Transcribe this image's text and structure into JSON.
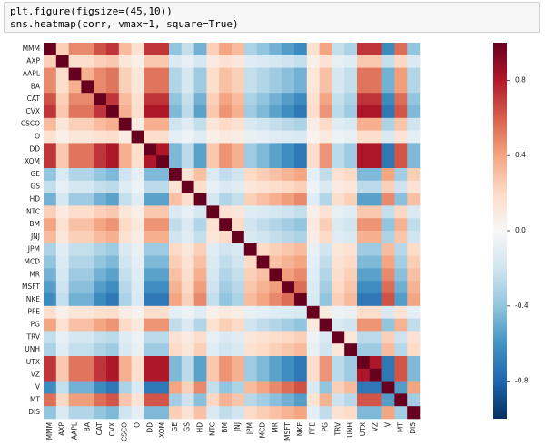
{
  "code": [
    "plt.figure(figsize=(45,10))",
    "sns.heatmap(corr, vmax=1, square=True)"
  ],
  "chart_data": {
    "type": "heatmap",
    "categories": [
      "MMM",
      "AXP",
      "AAPL",
      "BA",
      "CAT",
      "CVX",
      "CSCO",
      "O",
      "DD",
      "XOM",
      "GE",
      "GS",
      "HD",
      "NTC",
      "BM",
      "JNJ",
      "JPM",
      "MCD",
      "MR",
      "MSFT",
      "NKE",
      "PFE",
      "PG",
      "TRV",
      "UNH",
      "UTX",
      "VZ",
      "V",
      "MT",
      "DIS"
    ],
    "values": [
      [
        1,
        0.24,
        0.48,
        0.48,
        0.64,
        0.72,
        0.32,
        0.16,
        0.72,
        0.72,
        -0.4,
        -0.24,
        -0.48,
        0.24,
        0.4,
        0.32,
        -0.32,
        -0.4,
        -0.48,
        -0.56,
        -0.64,
        0.16,
        0.4,
        -0.24,
        -0.32,
        0.72,
        0.72,
        -0.64,
        0.56,
        -0.4
      ],
      [
        0.24,
        1,
        0.18,
        0.18,
        0.24,
        0.27,
        0.12,
        0.06,
        0.27,
        0.27,
        -0.15,
        -0.09,
        -0.18,
        0.09,
        0.15,
        0.12,
        -0.12,
        -0.15,
        -0.18,
        -0.21,
        -0.24,
        0.06,
        0.15,
        -0.09,
        -0.12,
        0.27,
        0.27,
        -0.24,
        0.21,
        -0.15
      ],
      [
        0.48,
        0.18,
        1,
        0.36,
        0.48,
        0.54,
        0.24,
        0.12,
        0.54,
        0.54,
        -0.3,
        -0.18,
        -0.36,
        0.18,
        0.3,
        0.24,
        -0.24,
        -0.3,
        -0.36,
        -0.42,
        -0.48,
        0.12,
        0.3,
        -0.18,
        -0.24,
        0.54,
        0.54,
        -0.48,
        0.42,
        -0.3
      ],
      [
        0.48,
        0.18,
        0.36,
        1,
        0.48,
        0.54,
        0.24,
        0.12,
        0.54,
        0.54,
        -0.3,
        -0.18,
        -0.36,
        0.18,
        0.3,
        0.24,
        -0.24,
        -0.3,
        -0.36,
        -0.42,
        -0.48,
        0.12,
        0.3,
        -0.18,
        -0.24,
        0.54,
        0.54,
        -0.48,
        0.42,
        -0.3
      ],
      [
        0.64,
        0.24,
        0.48,
        0.48,
        1,
        0.72,
        0.32,
        0.16,
        0.72,
        0.72,
        -0.4,
        -0.24,
        -0.48,
        0.24,
        0.4,
        0.32,
        -0.32,
        -0.4,
        -0.48,
        -0.56,
        -0.64,
        0.16,
        0.4,
        -0.24,
        -0.32,
        0.72,
        0.72,
        -0.64,
        0.56,
        -0.4
      ],
      [
        0.72,
        0.27,
        0.54,
        0.54,
        0.72,
        1,
        0.36,
        0.18,
        0.81,
        0.81,
        -0.45,
        -0.27,
        -0.54,
        0.27,
        0.45,
        0.36,
        -0.36,
        -0.45,
        -0.54,
        -0.63,
        -0.72,
        0.18,
        0.45,
        -0.27,
        -0.36,
        0.81,
        0.81,
        -0.72,
        0.63,
        -0.45
      ],
      [
        0.32,
        0.12,
        0.24,
        0.24,
        0.32,
        0.36,
        1,
        0.08,
        0.36,
        0.36,
        -0.2,
        -0.12,
        -0.24,
        0.12,
        0.2,
        0.16,
        -0.16,
        -0.2,
        -0.24,
        -0.28,
        -0.32,
        0.08,
        0.2,
        -0.12,
        -0.16,
        0.36,
        0.36,
        -0.32,
        0.28,
        -0.2
      ],
      [
        0.16,
        0.06,
        0.12,
        0.12,
        0.16,
        0.18,
        0.08,
        1,
        0.18,
        0.18,
        -0.1,
        -0.06,
        -0.12,
        0.06,
        0.1,
        0.08,
        -0.08,
        -0.1,
        -0.12,
        -0.14,
        -0.16,
        0.04,
        0.1,
        -0.06,
        -0.08,
        0.18,
        0.18,
        -0.16,
        0.14,
        -0.1
      ],
      [
        0.72,
        0.27,
        0.54,
        0.54,
        0.72,
        0.81,
        0.36,
        0.18,
        1,
        0.81,
        -0.45,
        -0.27,
        -0.54,
        0.27,
        0.45,
        0.36,
        -0.36,
        -0.45,
        -0.54,
        -0.63,
        -0.72,
        0.18,
        0.45,
        -0.27,
        -0.36,
        0.81,
        0.81,
        -0.72,
        0.63,
        -0.45
      ],
      [
        0.72,
        0.27,
        0.54,
        0.54,
        0.72,
        0.81,
        0.36,
        0.18,
        0.81,
        1,
        -0.45,
        -0.27,
        -0.54,
        0.27,
        0.45,
        0.36,
        -0.36,
        -0.45,
        -0.54,
        -0.63,
        -0.72,
        0.18,
        0.45,
        -0.27,
        -0.36,
        0.81,
        0.81,
        -0.72,
        0.63,
        -0.45
      ],
      [
        -0.4,
        -0.15,
        -0.3,
        -0.3,
        -0.4,
        -0.45,
        -0.2,
        -0.1,
        -0.45,
        -0.45,
        1,
        0.15,
        0.3,
        -0.15,
        -0.25,
        -0.2,
        0.2,
        0.25,
        0.3,
        0.35,
        0.4,
        -0.1,
        -0.25,
        0.15,
        0.2,
        -0.45,
        -0.45,
        0.4,
        -0.35,
        0.25
      ],
      [
        -0.24,
        -0.09,
        -0.18,
        -0.18,
        -0.24,
        -0.27,
        -0.12,
        -0.06,
        -0.27,
        -0.27,
        0.15,
        1,
        0.18,
        -0.09,
        -0.15,
        -0.12,
        0.12,
        0.15,
        0.18,
        0.21,
        0.24,
        -0.06,
        -0.15,
        0.09,
        0.12,
        -0.27,
        -0.27,
        0.24,
        -0.21,
        0.15
      ],
      [
        -0.48,
        -0.18,
        -0.36,
        -0.36,
        -0.48,
        -0.54,
        -0.24,
        -0.12,
        -0.54,
        -0.54,
        0.3,
        0.18,
        1,
        -0.18,
        -0.3,
        -0.24,
        0.24,
        0.3,
        0.36,
        0.42,
        0.48,
        -0.12,
        -0.3,
        0.18,
        0.24,
        -0.54,
        -0.54,
        0.48,
        -0.42,
        0.3
      ],
      [
        0.24,
        0.09,
        0.18,
        0.18,
        0.24,
        0.27,
        0.12,
        0.06,
        0.27,
        0.27,
        -0.15,
        -0.09,
        -0.18,
        1,
        0.15,
        0.12,
        -0.12,
        -0.15,
        -0.18,
        -0.21,
        -0.24,
        0.06,
        0.15,
        -0.09,
        -0.12,
        0.27,
        0.27,
        -0.24,
        0.21,
        -0.15
      ],
      [
        0.4,
        0.15,
        0.3,
        0.3,
        0.4,
        0.45,
        0.2,
        0.1,
        0.45,
        0.45,
        -0.25,
        -0.15,
        -0.3,
        0.15,
        1,
        0.2,
        -0.2,
        -0.25,
        -0.3,
        -0.35,
        -0.4,
        0.1,
        0.25,
        -0.15,
        -0.2,
        0.45,
        0.45,
        -0.4,
        0.35,
        -0.25
      ],
      [
        0.32,
        0.12,
        0.24,
        0.24,
        0.32,
        0.36,
        0.16,
        0.08,
        0.36,
        0.36,
        -0.2,
        -0.12,
        -0.24,
        0.12,
        0.2,
        1,
        -0.16,
        -0.2,
        -0.24,
        -0.28,
        -0.32,
        0.08,
        0.2,
        -0.12,
        -0.16,
        0.36,
        0.36,
        -0.32,
        0.28,
        -0.2
      ],
      [
        -0.32,
        -0.12,
        -0.24,
        -0.24,
        -0.32,
        -0.36,
        -0.16,
        -0.08,
        -0.36,
        -0.36,
        0.2,
        0.12,
        0.24,
        -0.12,
        -0.2,
        -0.16,
        1,
        0.2,
        0.24,
        0.28,
        0.32,
        -0.08,
        -0.2,
        0.12,
        0.16,
        -0.36,
        -0.36,
        0.32,
        -0.28,
        0.2
      ],
      [
        -0.4,
        -0.15,
        -0.3,
        -0.3,
        -0.4,
        -0.45,
        -0.2,
        -0.1,
        -0.45,
        -0.45,
        0.25,
        0.15,
        0.3,
        -0.15,
        -0.25,
        -0.2,
        0.2,
        1,
        0.3,
        0.35,
        0.4,
        -0.1,
        -0.25,
        0.15,
        0.2,
        -0.45,
        -0.45,
        0.4,
        -0.35,
        0.25
      ],
      [
        -0.48,
        -0.18,
        -0.36,
        -0.36,
        -0.48,
        -0.54,
        -0.24,
        -0.12,
        -0.54,
        -0.54,
        0.3,
        0.18,
        0.36,
        -0.18,
        -0.3,
        -0.24,
        0.24,
        0.3,
        1,
        0.42,
        0.48,
        -0.12,
        -0.3,
        0.18,
        0.24,
        -0.54,
        -0.54,
        0.48,
        -0.42,
        0.3
      ],
      [
        -0.56,
        -0.21,
        -0.42,
        -0.42,
        -0.56,
        -0.63,
        -0.28,
        -0.14,
        -0.63,
        -0.63,
        0.35,
        0.21,
        0.42,
        -0.21,
        -0.35,
        -0.28,
        0.28,
        0.35,
        0.42,
        1,
        0.56,
        -0.14,
        -0.35,
        0.21,
        0.28,
        -0.63,
        -0.63,
        0.56,
        -0.49,
        0.35
      ],
      [
        -0.64,
        -0.24,
        -0.48,
        -0.48,
        -0.64,
        -0.72,
        -0.32,
        -0.16,
        -0.72,
        -0.72,
        0.4,
        0.24,
        0.48,
        -0.24,
        -0.4,
        -0.32,
        0.32,
        0.4,
        0.48,
        0.56,
        1,
        -0.16,
        -0.4,
        0.24,
        0.32,
        -0.72,
        -0.72,
        0.64,
        -0.56,
        0.4
      ],
      [
        0.16,
        0.06,
        0.12,
        0.12,
        0.16,
        0.18,
        0.08,
        0.04,
        0.18,
        0.18,
        -0.1,
        -0.06,
        -0.12,
        0.06,
        0.1,
        0.08,
        -0.08,
        -0.1,
        -0.12,
        -0.14,
        -0.16,
        1,
        0.1,
        -0.06,
        -0.08,
        0.18,
        0.18,
        -0.16,
        0.14,
        -0.1
      ],
      [
        0.4,
        0.15,
        0.3,
        0.3,
        0.4,
        0.45,
        0.2,
        0.1,
        0.45,
        0.45,
        -0.25,
        -0.15,
        -0.3,
        0.15,
        0.25,
        0.2,
        -0.2,
        -0.25,
        -0.3,
        -0.35,
        -0.4,
        0.1,
        1,
        -0.15,
        -0.2,
        0.45,
        0.45,
        -0.4,
        0.35,
        -0.25
      ],
      [
        -0.24,
        -0.09,
        -0.18,
        -0.18,
        -0.24,
        -0.27,
        -0.12,
        -0.06,
        -0.27,
        -0.27,
        0.15,
        0.09,
        0.18,
        -0.09,
        -0.15,
        -0.12,
        0.12,
        0.15,
        0.18,
        0.21,
        0.24,
        -0.06,
        -0.15,
        1,
        0.12,
        -0.27,
        -0.27,
        0.24,
        -0.21,
        0.15
      ],
      [
        -0.32,
        -0.12,
        -0.24,
        -0.24,
        -0.32,
        -0.36,
        -0.16,
        -0.08,
        -0.36,
        -0.36,
        0.2,
        0.12,
        0.24,
        -0.12,
        -0.2,
        -0.16,
        0.16,
        0.2,
        0.24,
        0.28,
        0.32,
        -0.08,
        -0.2,
        0.12,
        1,
        -0.36,
        -0.36,
        0.32,
        -0.28,
        0.2
      ],
      [
        0.72,
        0.27,
        0.54,
        0.54,
        0.72,
        0.81,
        0.36,
        0.18,
        0.81,
        0.81,
        -0.45,
        -0.27,
        -0.54,
        0.27,
        0.45,
        0.36,
        -0.36,
        -0.45,
        -0.54,
        -0.63,
        -0.72,
        0.18,
        0.45,
        -0.27,
        -0.36,
        1,
        0.81,
        -0.72,
        0.63,
        -0.45
      ],
      [
        0.72,
        0.27,
        0.54,
        0.54,
        0.72,
        0.81,
        0.36,
        0.18,
        0.81,
        0.81,
        -0.45,
        -0.27,
        -0.54,
        0.27,
        0.45,
        0.36,
        -0.36,
        -0.45,
        -0.54,
        -0.63,
        -0.72,
        0.18,
        0.45,
        -0.27,
        -0.36,
        0.81,
        1,
        -0.72,
        0.63,
        -0.45
      ],
      [
        -0.64,
        -0.24,
        -0.48,
        -0.48,
        -0.64,
        -0.72,
        -0.32,
        -0.16,
        -0.72,
        -0.72,
        0.4,
        0.24,
        0.48,
        -0.24,
        -0.4,
        -0.32,
        0.32,
        0.4,
        0.48,
        0.56,
        0.64,
        -0.16,
        -0.4,
        0.24,
        0.32,
        -0.72,
        -0.72,
        1,
        -0.56,
        0.4
      ],
      [
        0.56,
        0.21,
        0.42,
        0.42,
        0.56,
        0.63,
        0.28,
        0.14,
        0.63,
        0.63,
        -0.35,
        -0.21,
        -0.42,
        0.21,
        0.35,
        0.28,
        -0.28,
        -0.35,
        -0.42,
        -0.49,
        -0.56,
        0.14,
        0.35,
        -0.21,
        -0.28,
        0.63,
        0.63,
        -0.56,
        1,
        -0.35
      ],
      [
        -0.4,
        -0.15,
        -0.3,
        -0.3,
        -0.4,
        -0.45,
        -0.2,
        -0.1,
        -0.45,
        -0.45,
        0.25,
        0.15,
        0.3,
        -0.15,
        -0.25,
        -0.2,
        0.2,
        0.25,
        0.3,
        0.35,
        0.4,
        -0.1,
        -0.25,
        0.15,
        0.2,
        -0.45,
        -0.45,
        0.4,
        -0.35,
        1
      ]
    ],
    "colors": [
      "#053061",
      "#2166ac",
      "#4393c3",
      "#92c5de",
      "#d1e5f0",
      "#f7f7f7",
      "#fddbc7",
      "#f4a582",
      "#d6604d",
      "#b2182b",
      "#67001f"
    ],
    "clim": [
      -1,
      1
    ],
    "cticks": [
      0.8,
      0.4,
      {
        "value": 0,
        "label": "0.0"
      },
      -0.4,
      -0.8
    ]
  }
}
